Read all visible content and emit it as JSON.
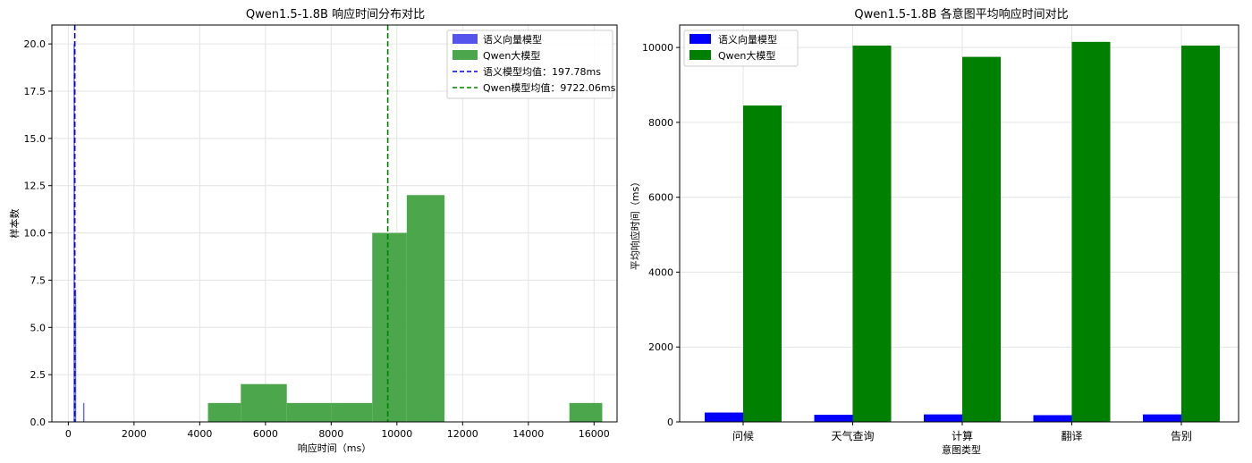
{
  "chart_data": [
    {
      "type": "histogram",
      "title": "Qwen1.5-1.8B 响应时间分布对比",
      "xlabel": "响应时间（ms）",
      "ylabel": "样本数",
      "xlim": [
        -500,
        16700
      ],
      "ylim": [
        0,
        21
      ],
      "x_ticks": [
        "0",
        "2000",
        "4000",
        "6000",
        "8000",
        "10000",
        "12000",
        "14000",
        "16000"
      ],
      "y_ticks": [
        "0.0",
        "2.5",
        "5.0",
        "7.5",
        "10.0",
        "12.5",
        "15.0",
        "17.5",
        "20.0"
      ],
      "grid": true,
      "legend_position": "top-right",
      "series": [
        {
          "name": "语义向量模型",
          "color": "#5555ee",
          "bins": [
            {
              "x0": 160,
              "x1": 200,
              "count": 20
            },
            {
              "x0": 200,
              "x1": 240,
              "count": 7
            },
            {
              "x0": 450,
              "x1": 490,
              "count": 1
            }
          ]
        },
        {
          "name": "Qwen大模型",
          "color": "#4ca64c",
          "bins": [
            {
              "x0": 4250,
              "x1": 5250,
              "count": 1
            },
            {
              "x0": 5250,
              "x1": 6650,
              "count": 2
            },
            {
              "x0": 6650,
              "x1": 8000,
              "count": 1
            },
            {
              "x0": 8000,
              "x1": 9250,
              "count": 1
            },
            {
              "x0": 9250,
              "x1": 10300,
              "count": 10
            },
            {
              "x0": 10300,
              "x1": 11450,
              "count": 12
            },
            {
              "x0": 15250,
              "x1": 16250,
              "count": 1
            }
          ]
        }
      ],
      "mean_lines": [
        {
          "label": "语义模型均值：197.78ms",
          "value": 197.78,
          "color": "#0000dd"
        },
        {
          "label": "Qwen模型均值：9722.06ms",
          "value": 9722.06,
          "color": "#008000"
        }
      ]
    },
    {
      "type": "bar",
      "title": "Qwen1.5-1.8B 各意图平均响应时间对比",
      "xlabel": "意图类型",
      "ylabel": "平均响应时间（ms）",
      "ylim": [
        0,
        10600
      ],
      "y_ticks": [
        "0",
        "2000",
        "4000",
        "6000",
        "8000",
        "10000"
      ],
      "grid": true,
      "legend_position": "top-left",
      "categories": [
        "问候",
        "天气查询",
        "计算",
        "翻译",
        "告别"
      ],
      "series": [
        {
          "name": "语义向量模型",
          "color": "#0000ff",
          "values": [
            250,
            190,
            200,
            180,
            200
          ]
        },
        {
          "name": "Qwen大模型",
          "color": "#008000",
          "values": [
            8450,
            10050,
            9750,
            10150,
            10050
          ]
        }
      ]
    }
  ]
}
